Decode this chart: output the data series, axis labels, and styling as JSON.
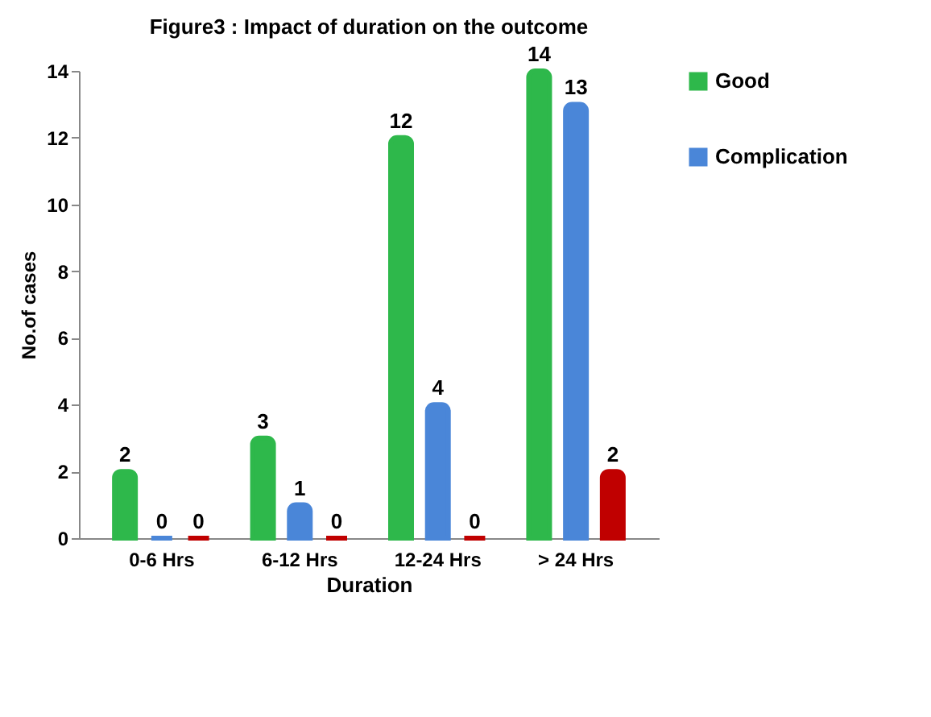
{
  "chart_data": {
    "type": "bar",
    "title": "Figure3 : Impact of duration on the outcome",
    "xlabel": "Duration",
    "ylabel": "No.of cases",
    "categories": [
      "0-6 Hrs",
      "6-12 Hrs",
      "12-24 Hrs",
      "> 24 Hrs"
    ],
    "series": [
      {
        "name": "Good",
        "color": "#2eb84b",
        "values": [
          2,
          3,
          12,
          14
        ]
      },
      {
        "name": "Complication",
        "color": "#4a86d8",
        "values": [
          0,
          1,
          4,
          13
        ]
      },
      {
        "color": "#c00000",
        "values": [
          0,
          0,
          0,
          2
        ]
      }
    ],
    "ylim": [
      0,
      14
    ],
    "yticks": [
      0,
      2,
      4,
      6,
      8,
      10,
      12,
      14
    ],
    "grid": false,
    "legend": "right",
    "data_labels": true
  }
}
